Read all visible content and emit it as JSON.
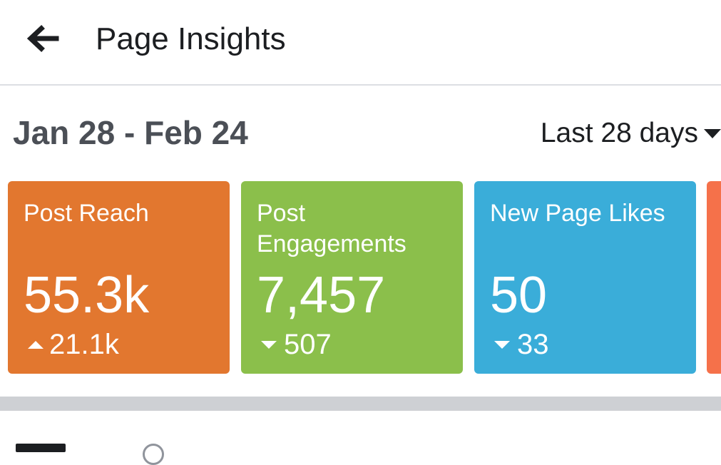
{
  "header": {
    "back_icon": "arrow-left-icon",
    "title": "Page Insights"
  },
  "range": {
    "label": "Jan 28 - Feb 24",
    "period": "Last 28 days",
    "caret_icon": "caret-down-icon"
  },
  "cards": [
    {
      "label": "Post Reach",
      "value": "55.3k",
      "delta": "21.1k",
      "direction": "up",
      "color": "#e2772f"
    },
    {
      "label": "Post Engagements",
      "value": "7,457",
      "delta": "507",
      "direction": "down",
      "color": "#8bbf4b"
    },
    {
      "label": "New Page Likes",
      "value": "50",
      "delta": "33",
      "direction": "down",
      "color": "#3aadd9"
    }
  ],
  "colors": {
    "partial_card": "#f5714a",
    "divider": "#ced0d4"
  }
}
